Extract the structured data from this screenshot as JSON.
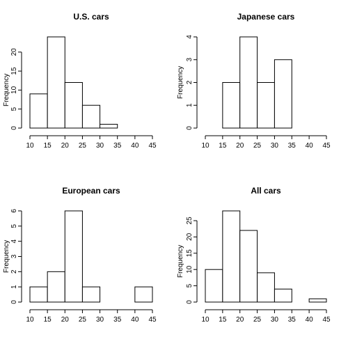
{
  "chart_data": [
    {
      "type": "bar",
      "title": "U.S. cars",
      "ylabel": "Frequency",
      "xlabel": "",
      "bins": [
        [
          10,
          15
        ],
        [
          15,
          20
        ],
        [
          20,
          25
        ],
        [
          25,
          30
        ],
        [
          30,
          35
        ]
      ],
      "values": [
        9,
        24,
        12,
        6,
        1
      ],
      "xticks": [
        10,
        15,
        20,
        25,
        30,
        35,
        40,
        45
      ],
      "yticks": [
        0,
        5,
        10,
        15,
        20
      ],
      "xlim": [
        10,
        45
      ],
      "ylim": [
        0,
        24
      ]
    },
    {
      "type": "bar",
      "title": "Japanese cars",
      "ylabel": "Frequency",
      "xlabel": "",
      "bins": [
        [
          15,
          20
        ],
        [
          20,
          25
        ],
        [
          25,
          30
        ],
        [
          30,
          35
        ]
      ],
      "values": [
        2,
        4,
        2,
        3
      ],
      "xticks": [
        10,
        15,
        20,
        25,
        30,
        35,
        40,
        45
      ],
      "yticks": [
        0,
        1,
        2,
        3,
        4
      ],
      "xlim": [
        10,
        45
      ],
      "ylim": [
        0,
        4
      ]
    },
    {
      "type": "bar",
      "title": "European cars",
      "ylabel": "Frequency",
      "xlabel": "",
      "bins": [
        [
          10,
          15
        ],
        [
          15,
          20
        ],
        [
          20,
          25
        ],
        [
          25,
          30
        ],
        [
          30,
          35
        ],
        [
          35,
          40
        ],
        [
          40,
          45
        ]
      ],
      "values": [
        1,
        2,
        6,
        1,
        0,
        0,
        1
      ],
      "xticks": [
        10,
        15,
        20,
        25,
        30,
        35,
        40,
        45
      ],
      "yticks": [
        0,
        1,
        2,
        3,
        4,
        5,
        6
      ],
      "xlim": [
        10,
        45
      ],
      "ylim": [
        0,
        6
      ]
    },
    {
      "type": "bar",
      "title": "All cars",
      "ylabel": "Frequency",
      "xlabel": "",
      "bins": [
        [
          10,
          15
        ],
        [
          15,
          20
        ],
        [
          20,
          25
        ],
        [
          25,
          30
        ],
        [
          30,
          35
        ],
        [
          35,
          40
        ],
        [
          40,
          45
        ]
      ],
      "values": [
        10,
        28,
        22,
        9,
        4,
        0,
        1
      ],
      "xticks": [
        10,
        15,
        20,
        25,
        30,
        35,
        40,
        45
      ],
      "yticks": [
        0,
        5,
        10,
        15,
        20,
        25
      ],
      "xlim": [
        10,
        45
      ],
      "ylim": [
        0,
        28
      ]
    }
  ]
}
